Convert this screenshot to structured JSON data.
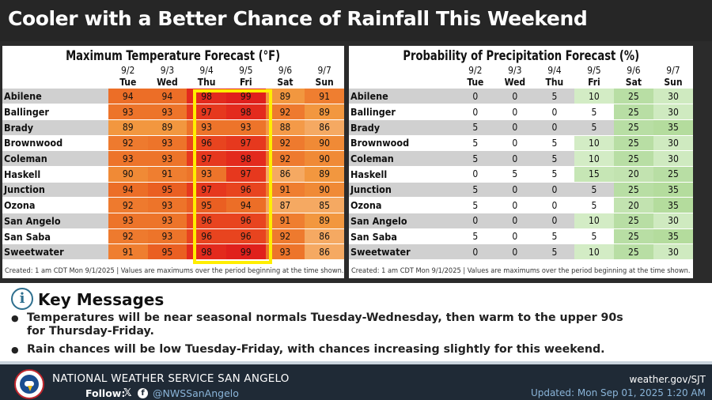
{
  "title": "Cooler with a Better Chance of Rainfall This Weekend",
  "temp_table": {
    "title": "Maximum Temperature Forecast (°F)",
    "dates": [
      "9/2",
      "9/3",
      "9/4",
      "9/5",
      "9/6",
      "9/7"
    ],
    "days": [
      "Tue",
      "Wed",
      "Thu",
      "Fri",
      "Sat",
      "Sun"
    ],
    "rows": [
      {
        "city": "Abilene",
        "values": [
          94,
          94,
          98,
          99,
          89,
          91
        ]
      },
      {
        "city": "Ballinger",
        "values": [
          93,
          93,
          97,
          98,
          92,
          89
        ]
      },
      {
        "city": "Brady",
        "values": [
          89,
          89,
          93,
          93,
          88,
          86
        ]
      },
      {
        "city": "Brownwood",
        "values": [
          92,
          93,
          96,
          97,
          92,
          90
        ]
      },
      {
        "city": "Coleman",
        "values": [
          93,
          93,
          97,
          98,
          92,
          90
        ]
      },
      {
        "city": "Haskell",
        "values": [
          90,
          91,
          93,
          97,
          86,
          89
        ]
      },
      {
        "city": "Junction",
        "values": [
          94,
          95,
          97,
          96,
          91,
          90
        ]
      },
      {
        "city": "Ozona",
        "values": [
          92,
          93,
          95,
          94,
          87,
          85
        ]
      },
      {
        "city": "San Angelo",
        "values": [
          93,
          93,
          96,
          96,
          91,
          89
        ]
      },
      {
        "city": "San Saba",
        "values": [
          92,
          93,
          96,
          96,
          92,
          86
        ]
      },
      {
        "city": "Sweetwater",
        "values": [
          91,
          95,
          98,
          99,
          93,
          86
        ]
      }
    ],
    "footnote": "Created: 1 am CDT Mon 9/1/2025  |  Values are maximums over the period beginning at the time shown."
  },
  "pop_table": {
    "title": "Probability of Precipitation Forecast (%)",
    "dates": [
      "9/2",
      "9/3",
      "9/4",
      "9/5",
      "9/6",
      "9/7"
    ],
    "days": [
      "Tue",
      "Wed",
      "Thu",
      "Fri",
      "Sat",
      "Sun"
    ],
    "rows": [
      {
        "city": "Abilene",
        "values": [
          0,
          0,
          5,
          10,
          25,
          30
        ]
      },
      {
        "city": "Ballinger",
        "values": [
          0,
          0,
          0,
          5,
          25,
          30
        ]
      },
      {
        "city": "Brady",
        "values": [
          5,
          0,
          0,
          5,
          25,
          35
        ]
      },
      {
        "city": "Brownwood",
        "values": [
          5,
          0,
          5,
          10,
          25,
          30
        ]
      },
      {
        "city": "Coleman",
        "values": [
          5,
          0,
          5,
          10,
          25,
          30
        ]
      },
      {
        "city": "Haskell",
        "values": [
          0,
          5,
          5,
          15,
          20,
          25
        ]
      },
      {
        "city": "Junction",
        "values": [
          5,
          0,
          0,
          5,
          25,
          35
        ]
      },
      {
        "city": "Ozona",
        "values": [
          5,
          0,
          0,
          5,
          20,
          35
        ]
      },
      {
        "city": "San Angelo",
        "values": [
          0,
          0,
          0,
          10,
          25,
          30
        ]
      },
      {
        "city": "San Saba",
        "values": [
          5,
          0,
          5,
          5,
          25,
          35
        ]
      },
      {
        "city": "Sweetwater",
        "values": [
          0,
          0,
          5,
          10,
          25,
          30
        ]
      }
    ],
    "footnote": "Created: 1 am CDT Mon 9/1/2025  |  Values are maximums over the period beginning at the time shown."
  },
  "colors": {
    "temp_scale": {
      "85": "#f5a962",
      "86": "#f5a962",
      "87": "#f5a962",
      "88": "#f49a48",
      "89": "#f2973f",
      "90": "#f08a36",
      "91": "#ef7e30",
      "92": "#ee7a2e",
      "93": "#ed742a",
      "94": "#ec6e27",
      "95": "#ea5f22",
      "96": "#e8441f",
      "97": "#e6381e",
      "98": "#e32a1d",
      "99": "#e0201c"
    },
    "pop_scale": {
      "0": "#ffffff",
      "5": "#ffffff",
      "10": "#d3ecc5",
      "15": "#c6e6b5",
      "20": "#c2e3b0",
      "25": "#b8dea4",
      "30": "#cfeac0",
      "35": "#b4dc9d"
    },
    "highlight": "#ffee00",
    "footer_bg": "#1f2a36",
    "accent": "#2e6f8e"
  },
  "key_messages": {
    "icon": "info-icon",
    "title": "Key Messages",
    "items": [
      "Temperatures will be near seasonal normals Tuesday-Wednesday, then warm to the upper 90s for Thursday-Friday.",
      "Rain chances will be low Tuesday-Friday, with chances increasing slightly for this weekend."
    ]
  },
  "footer": {
    "office": "NATIONAL WEATHER SERVICE SAN ANGELO",
    "follow": "Follow:",
    "x_icon": "𝕏",
    "fb_icon": "f",
    "handle": "@NWSSanAngelo",
    "website": "weather.gov/SJT",
    "updated": "Updated: Mon Sep 01, 2025 1:20 AM"
  }
}
